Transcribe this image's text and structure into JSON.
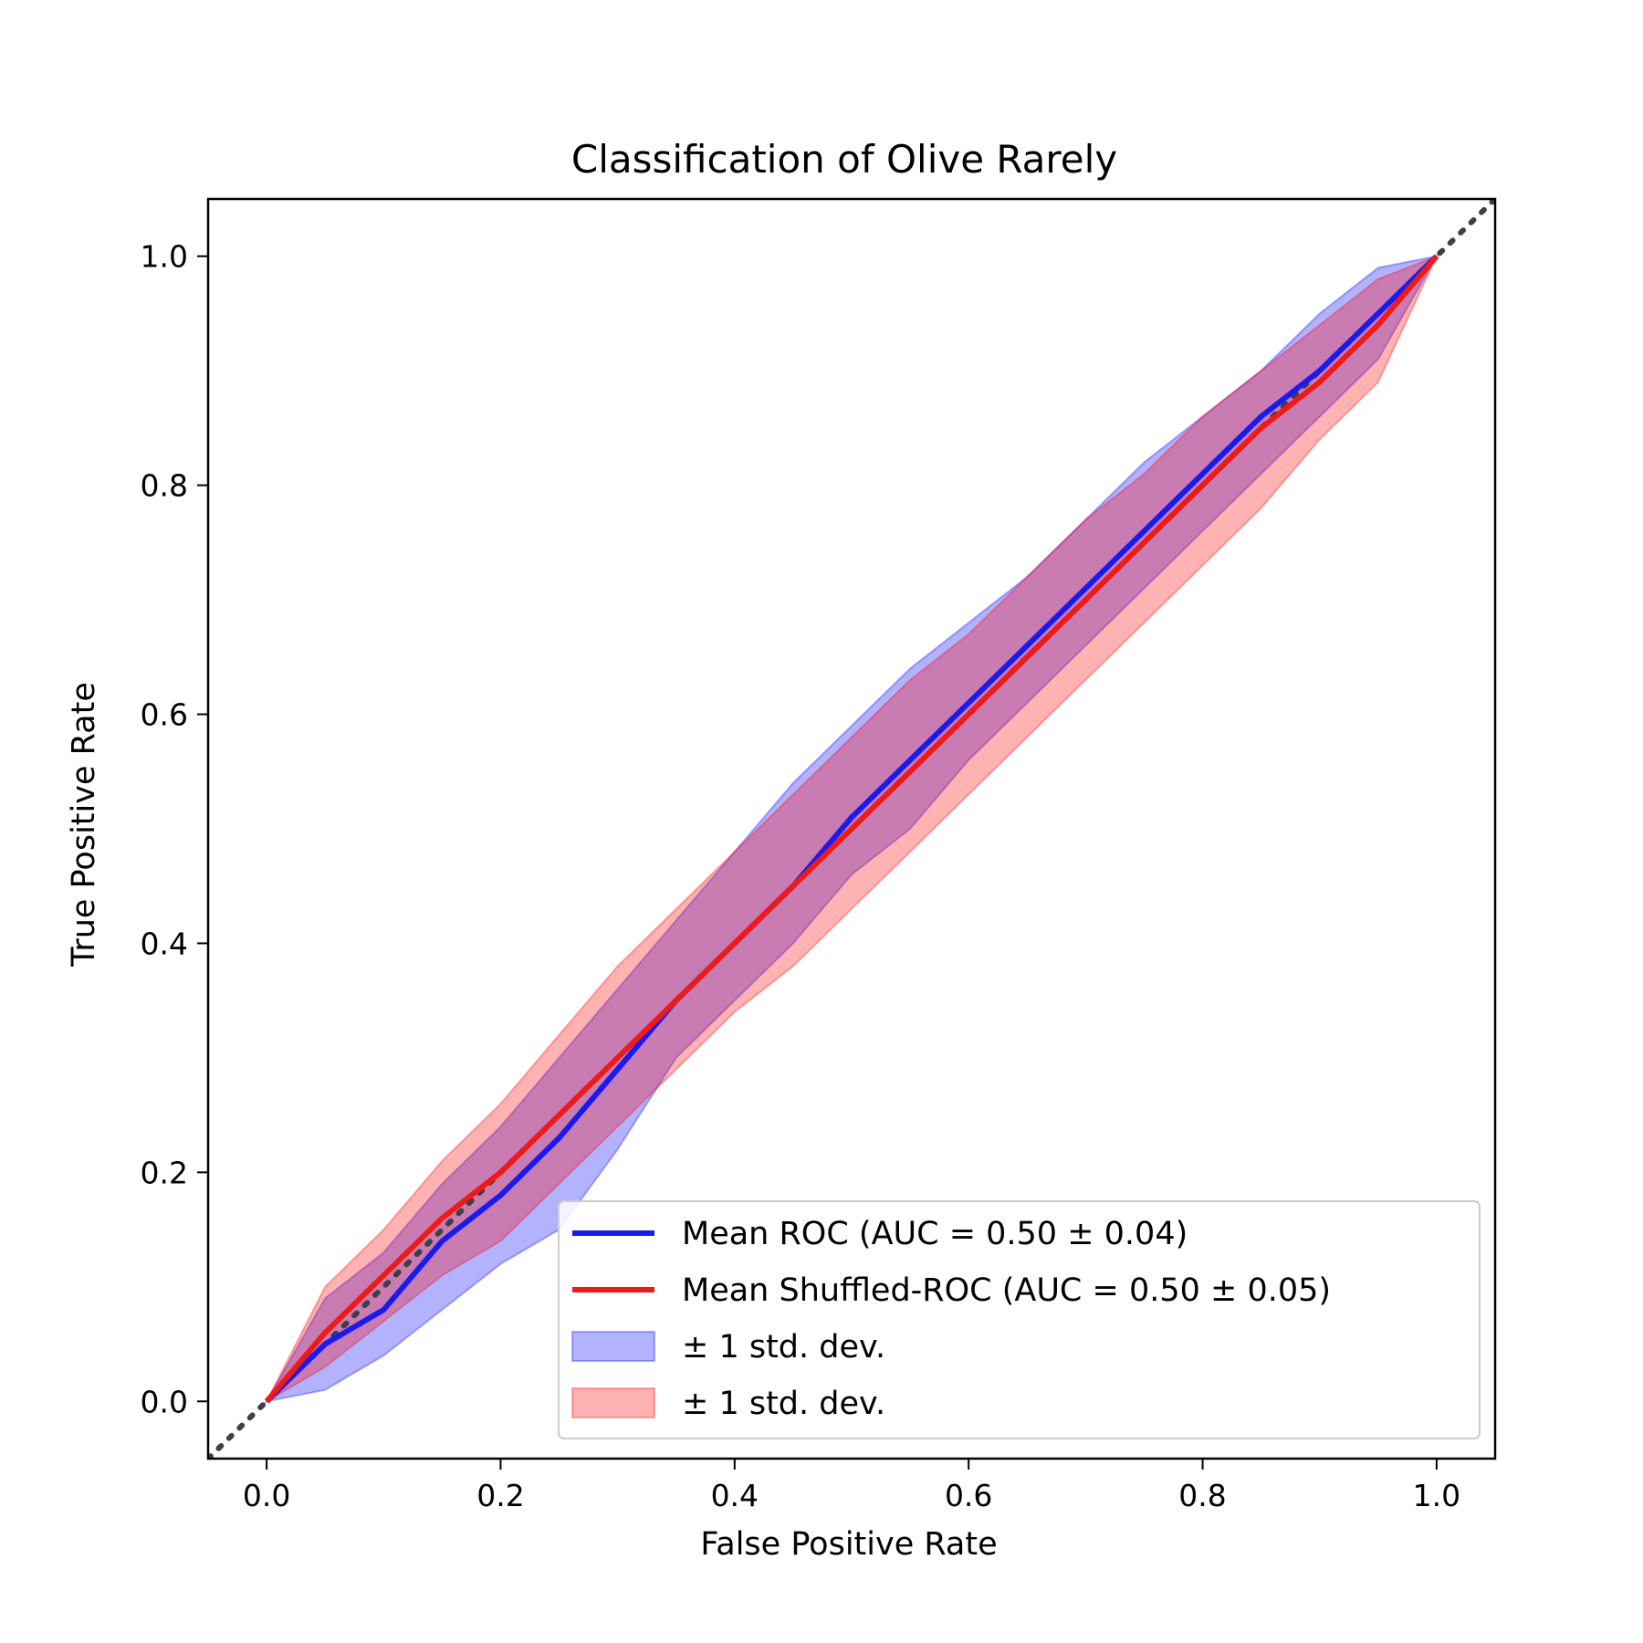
{
  "chart_data": {
    "type": "line",
    "title": "Classification of Olive Rarely",
    "xlabel": "False Positive Rate",
    "ylabel": "True Positive Rate",
    "xlim": [
      -0.05,
      1.05
    ],
    "ylim": [
      -0.05,
      1.05
    ],
    "xticks": [
      "0.0",
      "0.2",
      "0.4",
      "0.6",
      "0.8",
      "1.0"
    ],
    "yticks": [
      "0.0",
      "0.2",
      "0.4",
      "0.6",
      "0.8",
      "1.0"
    ],
    "grid": false,
    "legend_position": "lower-right",
    "x": [
      0,
      0.05,
      0.1,
      0.15,
      0.2,
      0.25,
      0.3,
      0.35,
      0.4,
      0.45,
      0.5,
      0.55,
      0.6,
      0.65,
      0.7,
      0.75,
      0.8,
      0.85,
      0.9,
      0.95,
      1.0
    ],
    "series": [
      {
        "name": "Mean ROC (AUC = 0.50 ± 0.04)",
        "color": "#1a1aee",
        "values": [
          0,
          0.05,
          0.08,
          0.14,
          0.18,
          0.23,
          0.29,
          0.35,
          0.4,
          0.45,
          0.51,
          0.56,
          0.61,
          0.66,
          0.71,
          0.76,
          0.81,
          0.86,
          0.9,
          0.95,
          1.0
        ]
      },
      {
        "name": "Mean Shuffled-ROC (AUC = 0.50 ± 0.05)",
        "color": "#ee1a1a",
        "values": [
          0,
          0.06,
          0.11,
          0.16,
          0.2,
          0.25,
          0.3,
          0.35,
          0.4,
          0.45,
          0.5,
          0.55,
          0.6,
          0.65,
          0.7,
          0.75,
          0.8,
          0.85,
          0.89,
          0.94,
          1.0
        ]
      }
    ],
    "bands": [
      {
        "name": "± 1 std. dev.",
        "color": "#0000ff",
        "lower": [
          0,
          0.01,
          0.04,
          0.08,
          0.12,
          0.15,
          0.22,
          0.3,
          0.35,
          0.4,
          0.46,
          0.5,
          0.56,
          0.61,
          0.66,
          0.71,
          0.76,
          0.81,
          0.86,
          0.91,
          1.0
        ],
        "upper": [
          0,
          0.09,
          0.13,
          0.19,
          0.24,
          0.3,
          0.36,
          0.42,
          0.48,
          0.54,
          0.59,
          0.64,
          0.68,
          0.72,
          0.77,
          0.82,
          0.86,
          0.9,
          0.95,
          0.99,
          1.0
        ]
      },
      {
        "name": "± 1 std. dev.",
        "color": "#ff0000",
        "lower": [
          0,
          0.03,
          0.07,
          0.11,
          0.14,
          0.19,
          0.24,
          0.29,
          0.34,
          0.38,
          0.43,
          0.48,
          0.53,
          0.58,
          0.63,
          0.68,
          0.73,
          0.78,
          0.84,
          0.89,
          1.0
        ],
        "upper": [
          0,
          0.1,
          0.15,
          0.21,
          0.26,
          0.32,
          0.38,
          0.43,
          0.48,
          0.53,
          0.58,
          0.63,
          0.67,
          0.72,
          0.77,
          0.81,
          0.86,
          0.9,
          0.94,
          0.98,
          1.0
        ]
      }
    ],
    "reference_line": {
      "x": [
        -0.05,
        1.05
      ],
      "y": [
        -0.05,
        1.05
      ],
      "color": "#404040",
      "style": "dotted"
    }
  }
}
